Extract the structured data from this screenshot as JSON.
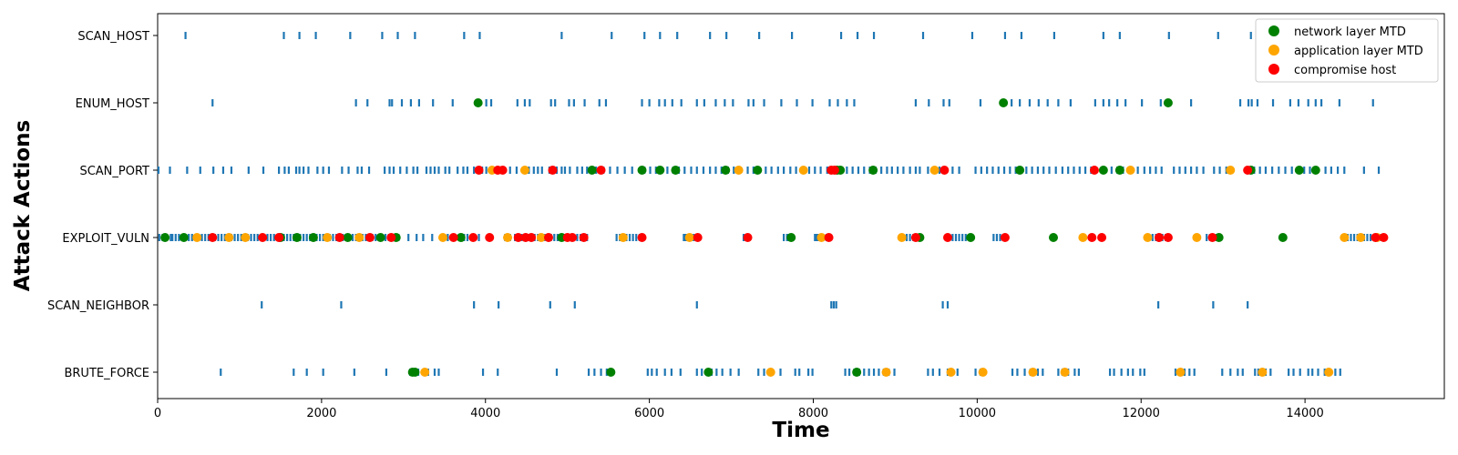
{
  "chart_data": {
    "type": "scatter",
    "title": "",
    "xlabel": "Time",
    "ylabel": "Attack Actions",
    "xlim": [
      0,
      15700
    ],
    "x_ticks": [
      0,
      2000,
      4000,
      6000,
      8000,
      10000,
      12000,
      14000
    ],
    "categories": [
      "SCAN_HOST",
      "ENUM_HOST",
      "SCAN_PORT",
      "EXPLOIT_VULN",
      "SCAN_NEIGHBOR",
      "BRUTE_FORCE"
    ],
    "grid": false,
    "legend_position": "top-right",
    "colors": {
      "action_mark": "#1f77b4",
      "network": "#008000",
      "application": "#ffa500",
      "compromise": "#ff0000"
    },
    "legend": [
      {
        "key": "network",
        "label": "network layer MTD"
      },
      {
        "key": "application",
        "label": "application layer MTD"
      },
      {
        "key": "compromise",
        "label": "compromise host"
      }
    ],
    "actions": {
      "SCAN_HOST": [
        340,
        1540,
        1730,
        1930,
        2350,
        2740,
        2930,
        3140,
        3740,
        3930,
        4930,
        5540,
        5940,
        6130,
        6340,
        6740,
        6940,
        7340,
        7740,
        8340,
        8540,
        8740,
        9340,
        9940,
        10340,
        10540,
        10940,
        11540,
        11740,
        12340,
        12940,
        13340
      ],
      "ENUM_HOST": [
        670,
        2420,
        2560,
        2830,
        2860,
        2980,
        3090,
        3190,
        3360,
        3600,
        3930,
        4010,
        4070,
        4390,
        4480,
        4540,
        4800,
        4850,
        5020,
        5080,
        5210,
        5390,
        5470,
        5910,
        6000,
        6120,
        6190,
        6280,
        6390,
        6580,
        6670,
        6810,
        6920,
        7020,
        7210,
        7270,
        7400,
        7610,
        7800,
        7990,
        8200,
        8300,
        8410,
        8500,
        9250,
        9410,
        9590,
        9660,
        10040,
        10320,
        10420,
        10520,
        10640,
        10750,
        10860,
        10990,
        11140,
        11440,
        11540,
        11610,
        11710,
        11810,
        12010,
        12240,
        12350,
        12610,
        13210,
        13310,
        13350,
        13420,
        13610,
        13820,
        13920,
        14040,
        14130,
        14200,
        14420,
        14830
      ],
      "SCAN_PORT": [
        10,
        150,
        360,
        520,
        680,
        800,
        900,
        1110,
        1290,
        1480,
        1550,
        1600,
        1690,
        1730,
        1780,
        1840,
        1950,
        2020,
        2090,
        2250,
        2330,
        2440,
        2490,
        2580,
        2770,
        2830,
        2880,
        2960,
        3040,
        3120,
        3170,
        3280,
        3330,
        3380,
        3430,
        3510,
        3560,
        3660,
        3730,
        3780,
        3860,
        3960,
        4010,
        4060,
        4300,
        4380,
        4470,
        4530,
        4590,
        4640,
        4690,
        4780,
        4870,
        4930,
        4970,
        5030,
        5120,
        5180,
        5240,
        5350,
        5440,
        5520,
        5610,
        5700,
        5790,
        5940,
        6010,
        6080,
        6150,
        6220,
        6290,
        6360,
        6430,
        6510,
        6580,
        6660,
        6740,
        6810,
        6880,
        6960,
        7030,
        7110,
        7200,
        7270,
        7340,
        7420,
        7490,
        7570,
        7640,
        7720,
        7790,
        7870,
        7950,
        8020,
        8090,
        8170,
        8350,
        8410,
        8480,
        8550,
        8620,
        8690,
        8760,
        8830,
        8900,
        8960,
        9030,
        9100,
        9180,
        9250,
        9300,
        9400,
        9470,
        9540,
        9700,
        9780,
        9980,
        10050,
        10120,
        10190,
        10260,
        10330,
        10400,
        10470,
        10600,
        10670,
        10740,
        10810,
        10880,
        10960,
        11040,
        11110,
        11180,
        11250,
        11320,
        11390,
        11640,
        11710,
        11780,
        11960,
        12040,
        12110,
        12180,
        12250,
        12400,
        12470,
        12540,
        12610,
        12680,
        12760,
        12890,
        12960,
        13040,
        13380,
        13450,
        13520,
        13600,
        13680,
        13760,
        13840,
        13910,
        13990,
        14060,
        14250,
        14320,
        14400,
        14480,
        14720,
        14900
      ],
      "EXPLOIT_VULN": [
        20,
        60,
        100,
        160,
        180,
        220,
        260,
        300,
        340,
        380,
        420,
        460,
        500,
        540,
        580,
        620,
        660,
        700,
        740,
        780,
        820,
        860,
        900,
        940,
        980,
        1020,
        1060,
        1100,
        1140,
        1180,
        1220,
        1260,
        1300,
        1340,
        1380,
        1420,
        1460,
        1500,
        1540,
        1580,
        1620,
        1660,
        1700,
        1740,
        1780,
        1820,
        1860,
        1900,
        1940,
        1980,
        2020,
        2060,
        2100,
        2140,
        2180,
        2220,
        2260,
        2300,
        2340,
        2380,
        2420,
        2460,
        2500,
        2540,
        2580,
        2620,
        2660,
        2700,
        2740,
        2780,
        2820,
        2860,
        2900,
        2940,
        3060,
        3160,
        3240,
        3350,
        3460,
        3540,
        3620,
        3700,
        3740,
        3780,
        3860,
        3920,
        4240,
        4300,
        4360,
        4400,
        4440,
        4480,
        4520,
        4560,
        4600,
        4640,
        4680,
        4720,
        4760,
        4800,
        4840,
        4880,
        4920,
        4960,
        5000,
        5040,
        5080,
        5120,
        5160,
        5200,
        5240,
        5600,
        5640,
        5680,
        5720,
        5760,
        5800,
        5840,
        5880,
        6420,
        6440,
        6460,
        6480,
        6500,
        6540,
        7150,
        7180,
        7210,
        7640,
        7680,
        7700,
        7730,
        8020,
        8040,
        8060,
        8080,
        8120,
        8160,
        9100,
        9140,
        9180,
        9220,
        9260,
        9300,
        9700,
        9740,
        9780,
        9820,
        9860,
        9900,
        10200,
        10240,
        10280,
        10320,
        12140,
        12180,
        12220,
        12260,
        12300,
        12340,
        12800,
        12840,
        12880,
        12920,
        14480,
        14520,
        14560,
        14600,
        14640,
        14680,
        14720,
        14760,
        14800,
        14840,
        14880,
        14920
      ],
      "SCAN_NEIGHBOR": [
        1270,
        2240,
        3860,
        4160,
        4790,
        5090,
        6580,
        8220,
        8250,
        8280,
        9580,
        9640,
        12210,
        12880,
        13300
      ],
      "BRUTE_FORCE": [
        770,
        1660,
        1820,
        2020,
        2400,
        2790,
        3080,
        3130,
        3180,
        3300,
        3380,
        3430,
        3970,
        4150,
        4870,
        5260,
        5330,
        5410,
        5480,
        5980,
        6030,
        6090,
        6190,
        6270,
        6380,
        6580,
        6640,
        6700,
        6760,
        6820,
        6890,
        6990,
        7090,
        7330,
        7400,
        7480,
        7600,
        7780,
        7830,
        7940,
        7990,
        8390,
        8440,
        8500,
        8560,
        8620,
        8680,
        8740,
        8800,
        8860,
        8920,
        8990,
        9400,
        9460,
        9540,
        9640,
        9700,
        9760,
        9980,
        10040,
        10090,
        10430,
        10490,
        10580,
        10650,
        10740,
        10800,
        10990,
        11040,
        11110,
        11190,
        11240,
        11620,
        11670,
        11760,
        11840,
        11900,
        11990,
        12040,
        12420,
        12470,
        12530,
        12590,
        12650,
        12990,
        13090,
        13180,
        13240,
        13390,
        13430,
        13520,
        13580,
        13800,
        13860,
        13940,
        14040,
        14090,
        14160,
        14240,
        14300,
        14370,
        14430
      ]
    },
    "events": {
      "network": [
        [
          "EXPLOIT_VULN",
          [
            90,
            320,
            1500,
            1700,
            1900,
            2320,
            2720,
            2910,
            3700,
            4930,
            7730,
            9300,
            9920,
            10930,
            12950,
            13730
          ]
        ],
        [
          "ENUM_HOST",
          [
            3910,
            10320,
            12330
          ]
        ],
        [
          "SCAN_PORT",
          [
            5300,
            5910,
            6130,
            6320,
            6930,
            7320,
            8290,
            8330,
            8730,
            10520,
            11540,
            11740,
            13340,
            13930,
            14130
          ]
        ],
        [
          "BRUTE_FORCE",
          [
            3110,
            3140,
            5530,
            6720,
            8530
          ]
        ]
      ],
      "application": [
        [
          "EXPLOIT_VULN",
          [
            480,
            870,
            1070,
            2070,
            2460,
            3480,
            4270,
            4680,
            5680,
            6490,
            8100,
            9080,
            11290,
            12080,
            12680,
            14480,
            14680,
            14880
          ]
        ],
        [
          "SCAN_PORT",
          [
            4080,
            4480,
            7090,
            7880,
            9480,
            11870,
            13090
          ]
        ],
        [
          "BRUTE_FORCE",
          [
            3260,
            7480,
            8890,
            9680,
            10070,
            10680,
            11070,
            12480,
            13480,
            14290
          ]
        ]
      ],
      "compromise": [
        [
          "EXPLOIT_VULN",
          [
            670,
            1280,
            1480,
            2220,
            2590,
            2850,
            3610,
            3850,
            4050,
            4400,
            4490,
            4560,
            4770,
            5000,
            5060,
            5200,
            5910,
            6590,
            7200,
            8190,
            9250,
            9640,
            10340,
            11400,
            11520,
            12220,
            12330,
            12870,
            14860,
            14960
          ]
        ],
        [
          "SCAN_PORT",
          [
            3920,
            4150,
            4210,
            4820,
            5410,
            8220,
            8260,
            9600,
            11430,
            13300
          ]
        ]
      ]
    }
  }
}
